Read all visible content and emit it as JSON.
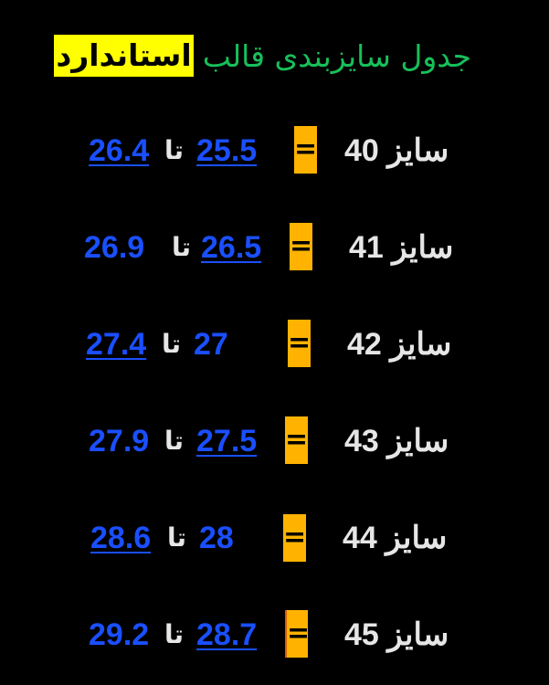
{
  "title": {
    "text": "جدول سایزبندی قالب",
    "highlight": "استاندارد"
  },
  "colors": {
    "background": "#000000",
    "title": "#17c05a",
    "highlight": "#ffff00",
    "number": "#1a4fff",
    "equals_box": "#ffb300",
    "label": "#e6e6e6"
  },
  "to_word": "تا",
  "equals": "=",
  "rows": [
    {
      "label": "سایز 40",
      "from": "25.5",
      "to": "26.4"
    },
    {
      "label": "سایز 41",
      "from": "26.5",
      "to": "26.9"
    },
    {
      "label": "سایز 42",
      "from": "27",
      "to": "27.4"
    },
    {
      "label": "سایز 43",
      "from": "27.5",
      "to": "27.9"
    },
    {
      "label": "سایز 44",
      "from": "28",
      "to": "28.6"
    },
    {
      "label": "سایز 45",
      "from": "28.7",
      "to": "29.2"
    }
  ]
}
